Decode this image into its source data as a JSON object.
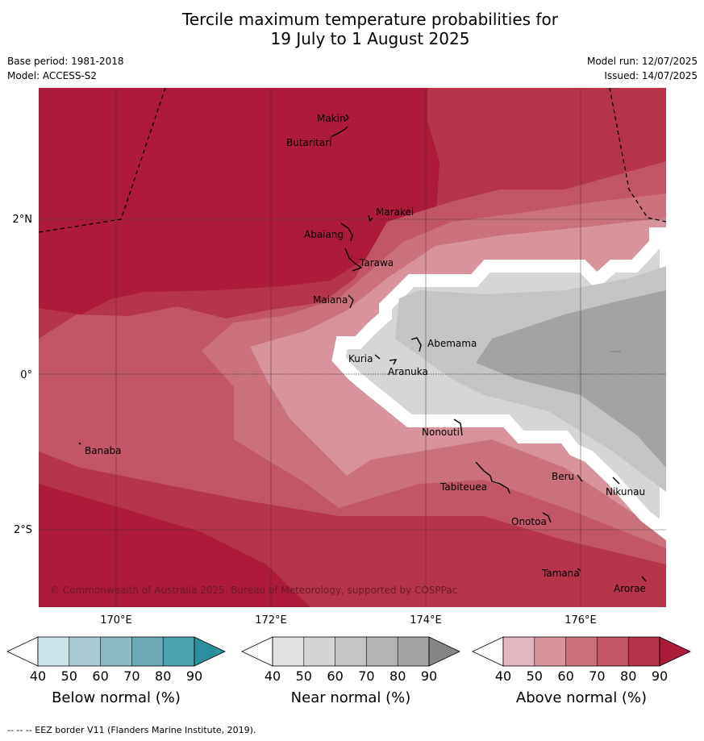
{
  "title_line1": "Tercile maximum temperature probabilities for",
  "title_line2": "19 July to 1 August 2025",
  "base_period": "Base period: 1981-2018",
  "model": "Model: ACCESS-S2",
  "model_run": "Model run: 12/07/2025",
  "issued": "Issued: 14/07/2025",
  "copyright": "© Commonwealth of Australia 2025, Bureau of Meteorology, supported by COSPPac",
  "footer": "--  --  -- EEZ border V11 (Flanders Marine Institute, 2019).",
  "axes": {
    "lon_labels": [
      "170°E",
      "172°E",
      "174°E",
      "176°E"
    ],
    "lat_labels": [
      "2°N",
      "0°",
      "2°S"
    ]
  },
  "places": [
    {
      "name": "Makin"
    },
    {
      "name": "Butaritari"
    },
    {
      "name": "Marakei"
    },
    {
      "name": "Abaiang"
    },
    {
      "name": "Tarawa"
    },
    {
      "name": "Maiana"
    },
    {
      "name": "Abemama"
    },
    {
      "name": "Kuria"
    },
    {
      "name": "Aranuka"
    },
    {
      "name": "Nonouti"
    },
    {
      "name": "Banaba"
    },
    {
      "name": "Beru"
    },
    {
      "name": "Tabiteuea"
    },
    {
      "name": "Nikunau"
    },
    {
      "name": "Onotoa"
    },
    {
      "name": "Tamana"
    },
    {
      "name": "Arorae"
    }
  ],
  "colorbars": [
    {
      "title": "Below normal (%)",
      "ticks": [
        "40",
        "50",
        "60",
        "70",
        "80",
        "90"
      ],
      "colors": [
        "#cce3ea",
        "#a9cad3",
        "#8bb9c4",
        "#6ba8b6",
        "#4aa1b0",
        "#2b8fa0"
      ]
    },
    {
      "title": "Near normal (%)",
      "ticks": [
        "40",
        "50",
        "60",
        "70",
        "80",
        "90"
      ],
      "colors": [
        "#e2e2e2",
        "#d4d4d4",
        "#c4c4c4",
        "#b3b3b3",
        "#a3a3a3",
        "#858585"
      ]
    },
    {
      "title": "Above normal (%)",
      "ticks": [
        "40",
        "50",
        "60",
        "70",
        "80",
        "90"
      ],
      "colors": [
        "#e2b6be",
        "#d8939c",
        "#cb717c",
        "#c25566",
        "#b5344a",
        "#ad1a3a"
      ]
    }
  ]
}
